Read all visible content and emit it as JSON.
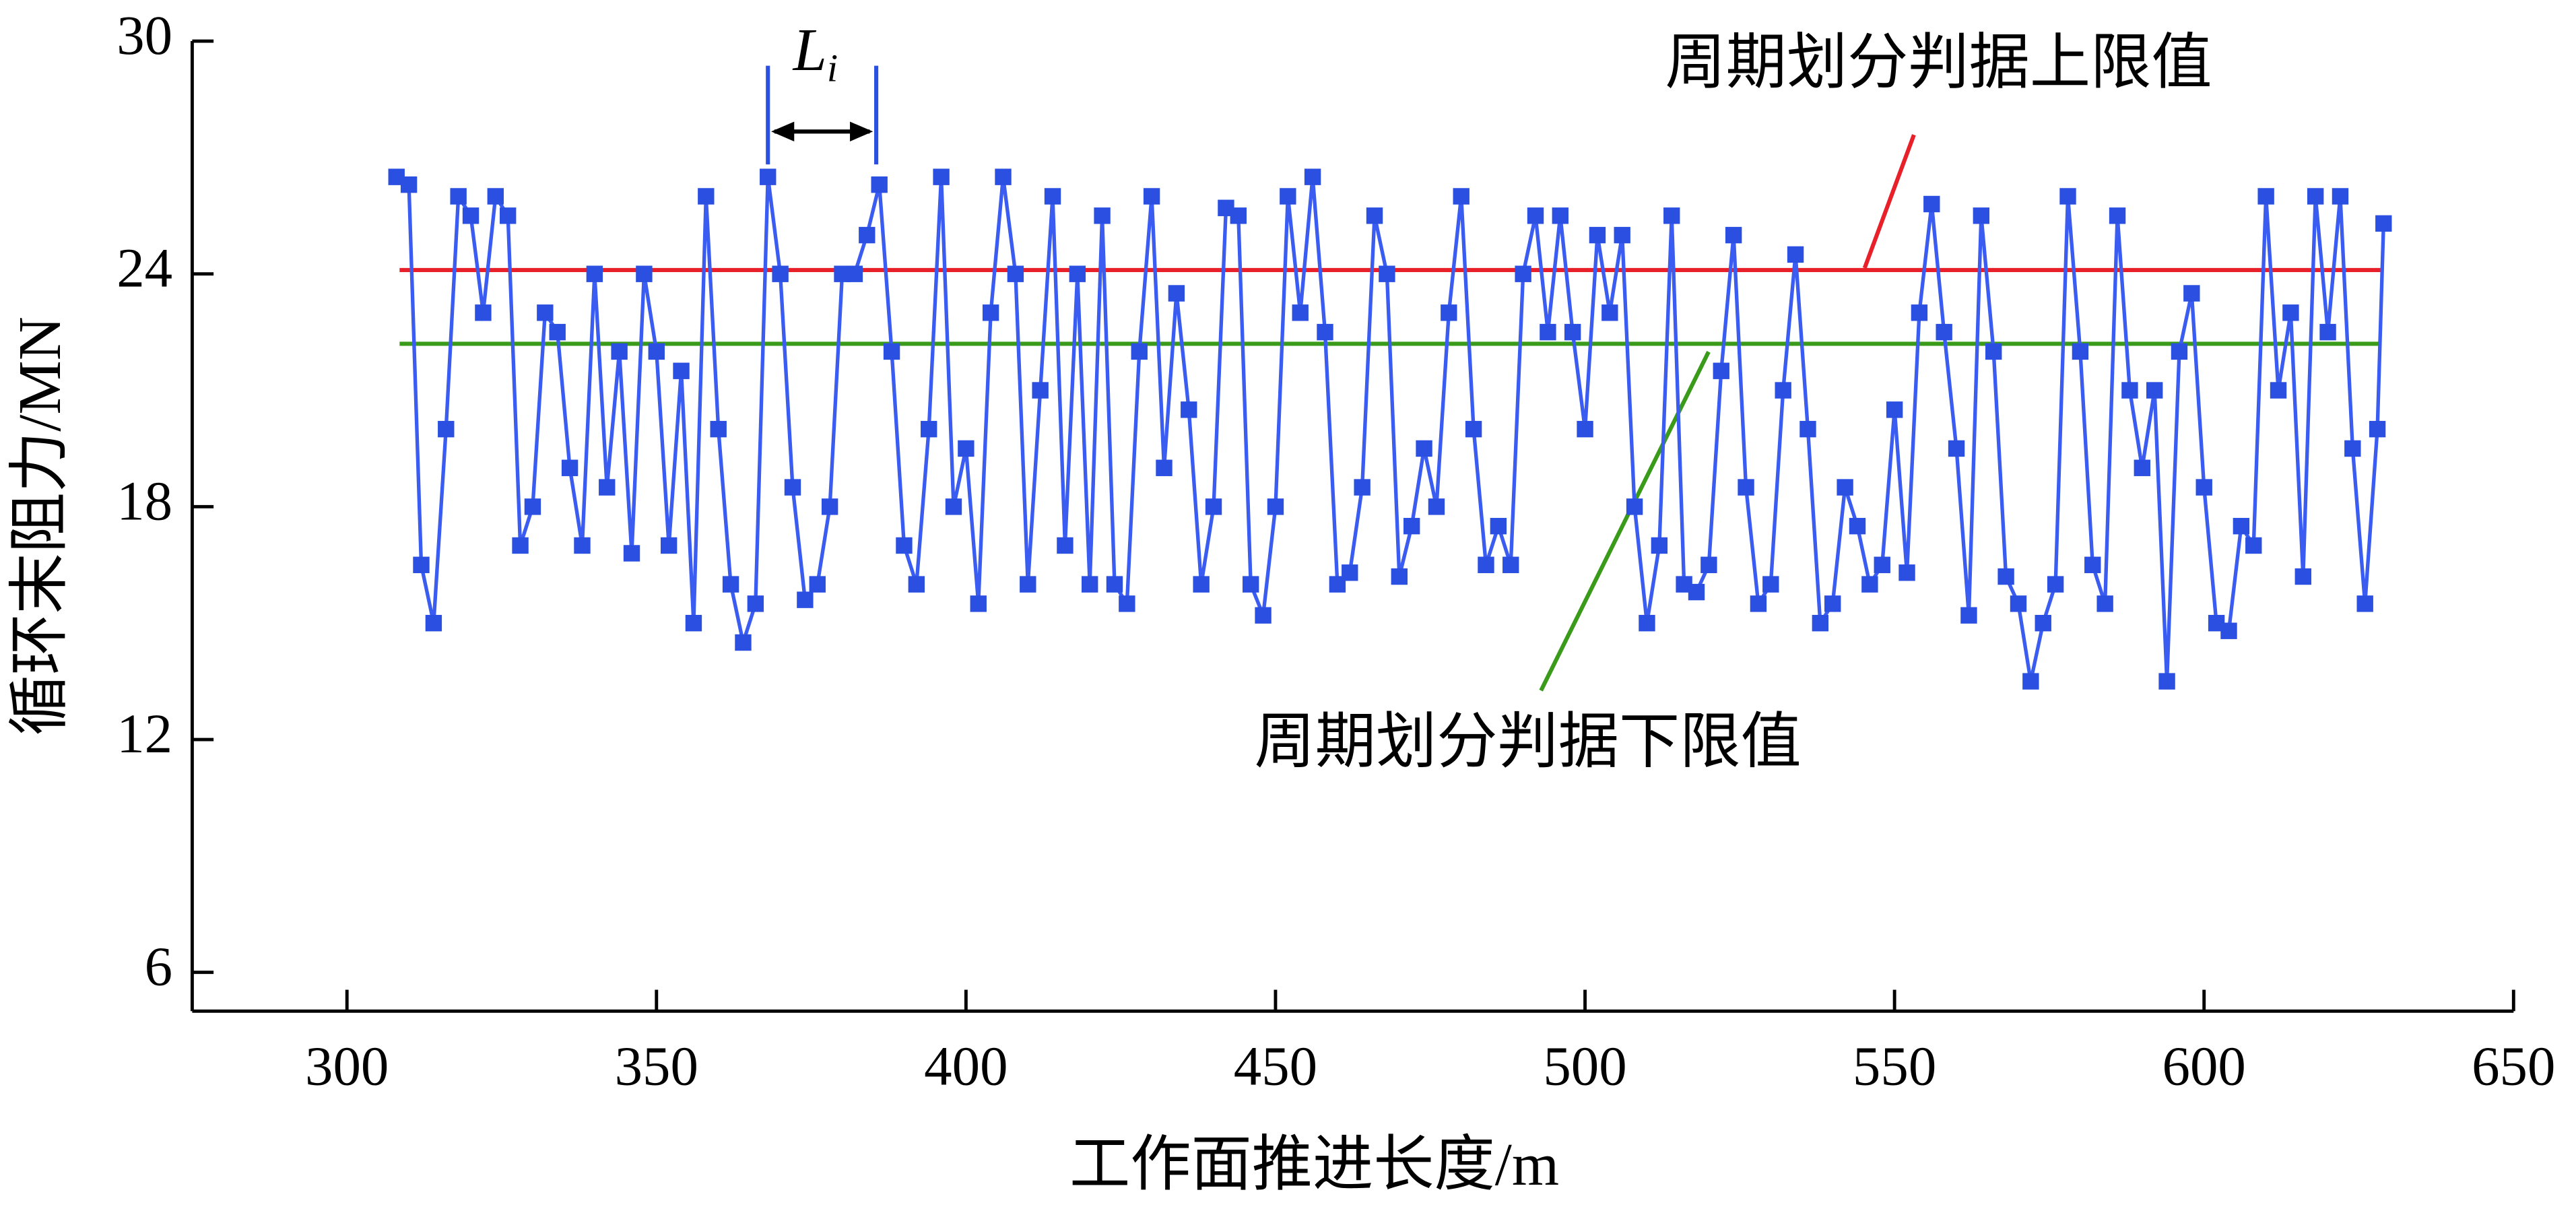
{
  "chart_data": {
    "type": "line",
    "xlabel": "工作面推进长度/m",
    "ylabel": "循环末阻力/MN",
    "xlim": [
      275,
      650
    ],
    "xticks": [
      300,
      350,
      400,
      450,
      500,
      550,
      600,
      650
    ],
    "ylim": [
      5,
      30
    ],
    "yticks": [
      6,
      12,
      18,
      24,
      30
    ],
    "color": "#2b4fe0",
    "x": [
      308,
      310,
      312,
      314,
      316,
      318,
      320,
      322,
      324,
      326,
      328,
      330,
      332,
      334,
      336,
      338,
      340,
      342,
      344,
      346,
      348,
      350,
      352,
      354,
      356,
      358,
      360,
      362,
      364,
      366,
      368,
      370,
      372,
      374,
      376,
      378,
      380,
      382,
      384,
      386,
      388,
      390,
      392,
      394,
      396,
      398,
      400,
      402,
      404,
      406,
      408,
      410,
      412,
      414,
      416,
      418,
      420,
      422,
      424,
      426,
      428,
      430,
      432,
      434,
      436,
      438,
      440,
      442,
      444,
      446,
      448,
      450,
      452,
      454,
      456,
      458,
      460,
      462,
      464,
      466,
      468,
      470,
      472,
      474,
      476,
      478,
      480,
      482,
      484,
      486,
      488,
      490,
      492,
      494,
      496,
      498,
      500,
      502,
      504,
      506,
      508,
      510,
      512,
      514,
      516,
      518,
      520,
      522,
      524,
      526,
      528,
      530,
      532,
      534,
      536,
      538,
      540,
      542,
      544,
      546,
      548,
      550,
      552,
      554,
      556,
      558,
      560,
      562,
      564,
      566,
      568,
      570,
      572,
      574,
      576,
      578,
      580,
      582,
      584,
      586,
      588,
      590,
      592,
      594,
      596,
      598,
      600,
      602,
      604,
      606,
      608,
      610,
      612,
      614,
      616,
      618,
      620,
      622,
      624,
      626,
      628,
      629
    ],
    "values": [
      26.5,
      26.3,
      16.5,
      15,
      20,
      26,
      25.5,
      23,
      26,
      25.5,
      17,
      18,
      23,
      22.5,
      19,
      17,
      24,
      18.5,
      22,
      16.8,
      24,
      22,
      17,
      21.5,
      15,
      26,
      20,
      16,
      14.5,
      15.5,
      26.5,
      24,
      18.5,
      15.6,
      16,
      18,
      24,
      24,
      25,
      26.3,
      22,
      17,
      16,
      20,
      26.5,
      18,
      19.5,
      15.5,
      23,
      26.5,
      24,
      16,
      21,
      26,
      17,
      24,
      16,
      25.5,
      16,
      15.5,
      22,
      26,
      19,
      23.5,
      20.5,
      16,
      18,
      25.7,
      25.5,
      16,
      15.2,
      18,
      26,
      23,
      26.5,
      22.5,
      16,
      16.3,
      18.5,
      25.5,
      24,
      16.2,
      17.5,
      19.5,
      18,
      23,
      26,
      20,
      16.5,
      17.5,
      16.5,
      24,
      25.5,
      22.5,
      25.5,
      22.5,
      20,
      25,
      23,
      25,
      18,
      15,
      17,
      25.5,
      16,
      15.8,
      16.5,
      21.5,
      25,
      18.5,
      15.5,
      16,
      21,
      24.5,
      20,
      15,
      15.5,
      18.5,
      17.5,
      16,
      16.5,
      20.5,
      16.3,
      23,
      25.8,
      22.5,
      19.5,
      15.2,
      25.5,
      22,
      16.2,
      15.5,
      13.5,
      15,
      16,
      26,
      22,
      16.5,
      15.5,
      25.5,
      21,
      19,
      21,
      13.5,
      22,
      23.5,
      18.5,
      15,
      14.8,
      17.5,
      17,
      26,
      21,
      23,
      16.2,
      26,
      22.5,
      26,
      19.5,
      15.5,
      20,
      25.3
    ],
    "reference_lines": [
      {
        "label": "周期划分判据上限值",
        "value": 24.1,
        "color": "#e8202a",
        "xrange": [
          308.5,
          628.5
        ]
      },
      {
        "label": "周期划分判据下限值",
        "value": 22.2,
        "color": "#3a9a1a",
        "xrange": [
          308.5,
          628.5
        ]
      }
    ],
    "span_annotation": {
      "text": "L",
      "sub": "i",
      "x": [
        368,
        385.5
      ]
    }
  }
}
